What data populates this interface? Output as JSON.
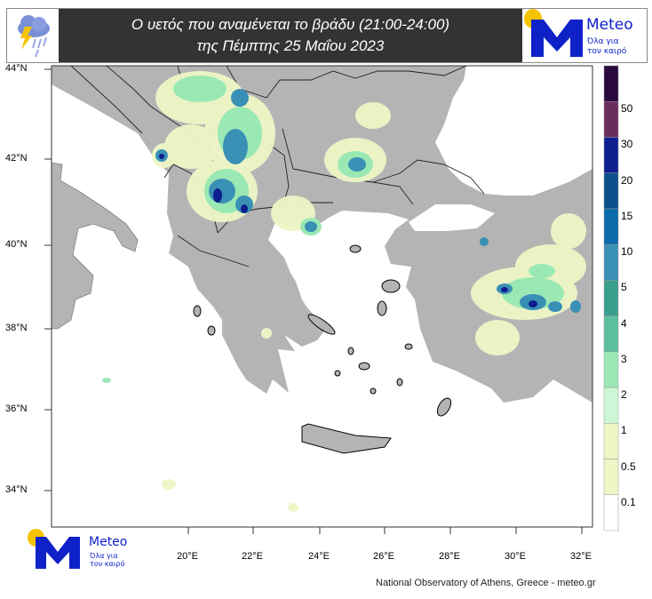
{
  "header": {
    "title_line1": "Ο υετός που αναμένεται το βράδυ (21:00-24:00)",
    "title_line2": "της Πέμπτης 25 Μαΐου 2023",
    "weather_icon": "cloud-lightning-rain-icon"
  },
  "logo": {
    "name": "Meteo",
    "tagline1": "Όλα για",
    "tagline2": "τον καιρό",
    "brand_color": "#0e22c8",
    "sun_color": "#f5c400"
  },
  "map": {
    "lat_labels": [
      "44°N",
      "42°N",
      "40°N",
      "38°N",
      "36°N",
      "34°N"
    ],
    "lon_labels": [
      "20°E",
      "22°E",
      "24°E",
      "26°E",
      "28°E",
      "30°E",
      "32°E"
    ],
    "land_color": "#b4b4b4",
    "sea_color": "#ffffff"
  },
  "legend": {
    "labels": [
      "50",
      "30",
      "20",
      "15",
      "10",
      "5",
      "4",
      "3",
      "2",
      "1",
      "0.5",
      "0.1"
    ],
    "colors": [
      "#2a0a3e",
      "#6b2d5e",
      "#0d1e8e",
      "#0b4f8a",
      "#0b6aaa",
      "#3a8fb5",
      "#3a9e8e",
      "#5cbf9e",
      "#9ae8b4",
      "#ccf7d6",
      "#eef7c6",
      "#eef7c6",
      "#ffffff"
    ]
  },
  "credit": "National Observatory of Athens, Greece - meteo.gr"
}
